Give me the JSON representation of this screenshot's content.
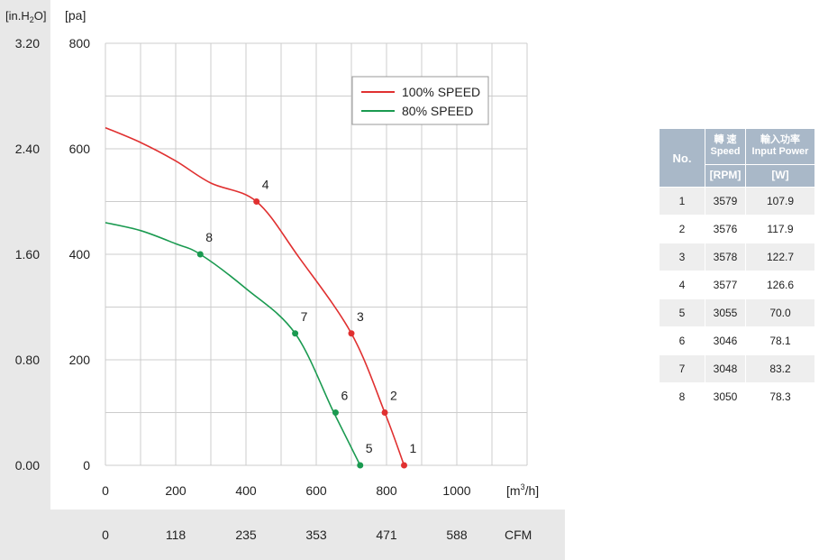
{
  "chart_data": {
    "type": "line",
    "left_axis_unit": "[in.H2O]",
    "right_axis_unit": "[pa]",
    "y_ticks_inh2o": [
      "3.20",
      "2.40",
      "1.60",
      "0.80",
      "0.00"
    ],
    "y_ticks_pa": [
      "800",
      "600",
      "400",
      "200",
      "0"
    ],
    "ylim": [
      0,
      800
    ],
    "xlim": [
      0,
      1200
    ],
    "x_ticks_m3h": [
      "0",
      "200",
      "400",
      "600",
      "800",
      "1000"
    ],
    "x_unit_m3h": "[m³/h]",
    "x_ticks_cfm": [
      "0",
      "118",
      "235",
      "353",
      "471",
      "588"
    ],
    "x_unit_cfm": "CFM",
    "grid": true,
    "legend_position": "top-right",
    "series": [
      {
        "name": "100% SPEED",
        "color": "#e03030",
        "curve": [
          [
            0,
            640
          ],
          [
            100,
            612
          ],
          [
            200,
            577
          ],
          [
            300,
            535
          ],
          [
            430,
            500
          ],
          [
            550,
            395
          ],
          [
            700,
            250
          ],
          [
            795,
            100
          ],
          [
            850,
            0
          ]
        ],
        "points": [
          {
            "label": "1",
            "x": 850,
            "y": 0
          },
          {
            "label": "2",
            "x": 795,
            "y": 100
          },
          {
            "label": "3",
            "x": 700,
            "y": 250
          },
          {
            "label": "4",
            "x": 430,
            "y": 500
          }
        ]
      },
      {
        "name": "80% SPEED",
        "color": "#1a9a50",
        "curve": [
          [
            0,
            460
          ],
          [
            100,
            445
          ],
          [
            200,
            420
          ],
          [
            270,
            400
          ],
          [
            400,
            335
          ],
          [
            540,
            250
          ],
          [
            650,
            100
          ],
          [
            725,
            0
          ]
        ],
        "points": [
          {
            "label": "5",
            "x": 725,
            "y": 0
          },
          {
            "label": "6",
            "x": 655,
            "y": 100
          },
          {
            "label": "7",
            "x": 540,
            "y": 250
          },
          {
            "label": "8",
            "x": 270,
            "y": 400
          }
        ]
      }
    ]
  },
  "table": {
    "header_no": "No.",
    "header_speed_cn": "轉 速",
    "header_speed_en": "Speed",
    "header_power_cn": "輸入功率",
    "header_power_en": "Input Power",
    "unit_speed": "[RPM]",
    "unit_power": "[W]",
    "rows": [
      {
        "no": "1",
        "rpm": "3579",
        "w": "107.9"
      },
      {
        "no": "2",
        "rpm": "3576",
        "w": "117.9"
      },
      {
        "no": "3",
        "rpm": "3578",
        "w": "122.7"
      },
      {
        "no": "4",
        "rpm": "3577",
        "w": "126.6"
      },
      {
        "no": "5",
        "rpm": "3055",
        "w": "70.0"
      },
      {
        "no": "6",
        "rpm": "3046",
        "w": "78.1"
      },
      {
        "no": "7",
        "rpm": "3048",
        "w": "83.2"
      },
      {
        "no": "8",
        "rpm": "3050",
        "w": "78.3"
      }
    ]
  },
  "colors": {
    "panel_gray": "#e8e8e8",
    "grid": "#cccccc",
    "table_header": "#a9b8c8"
  }
}
